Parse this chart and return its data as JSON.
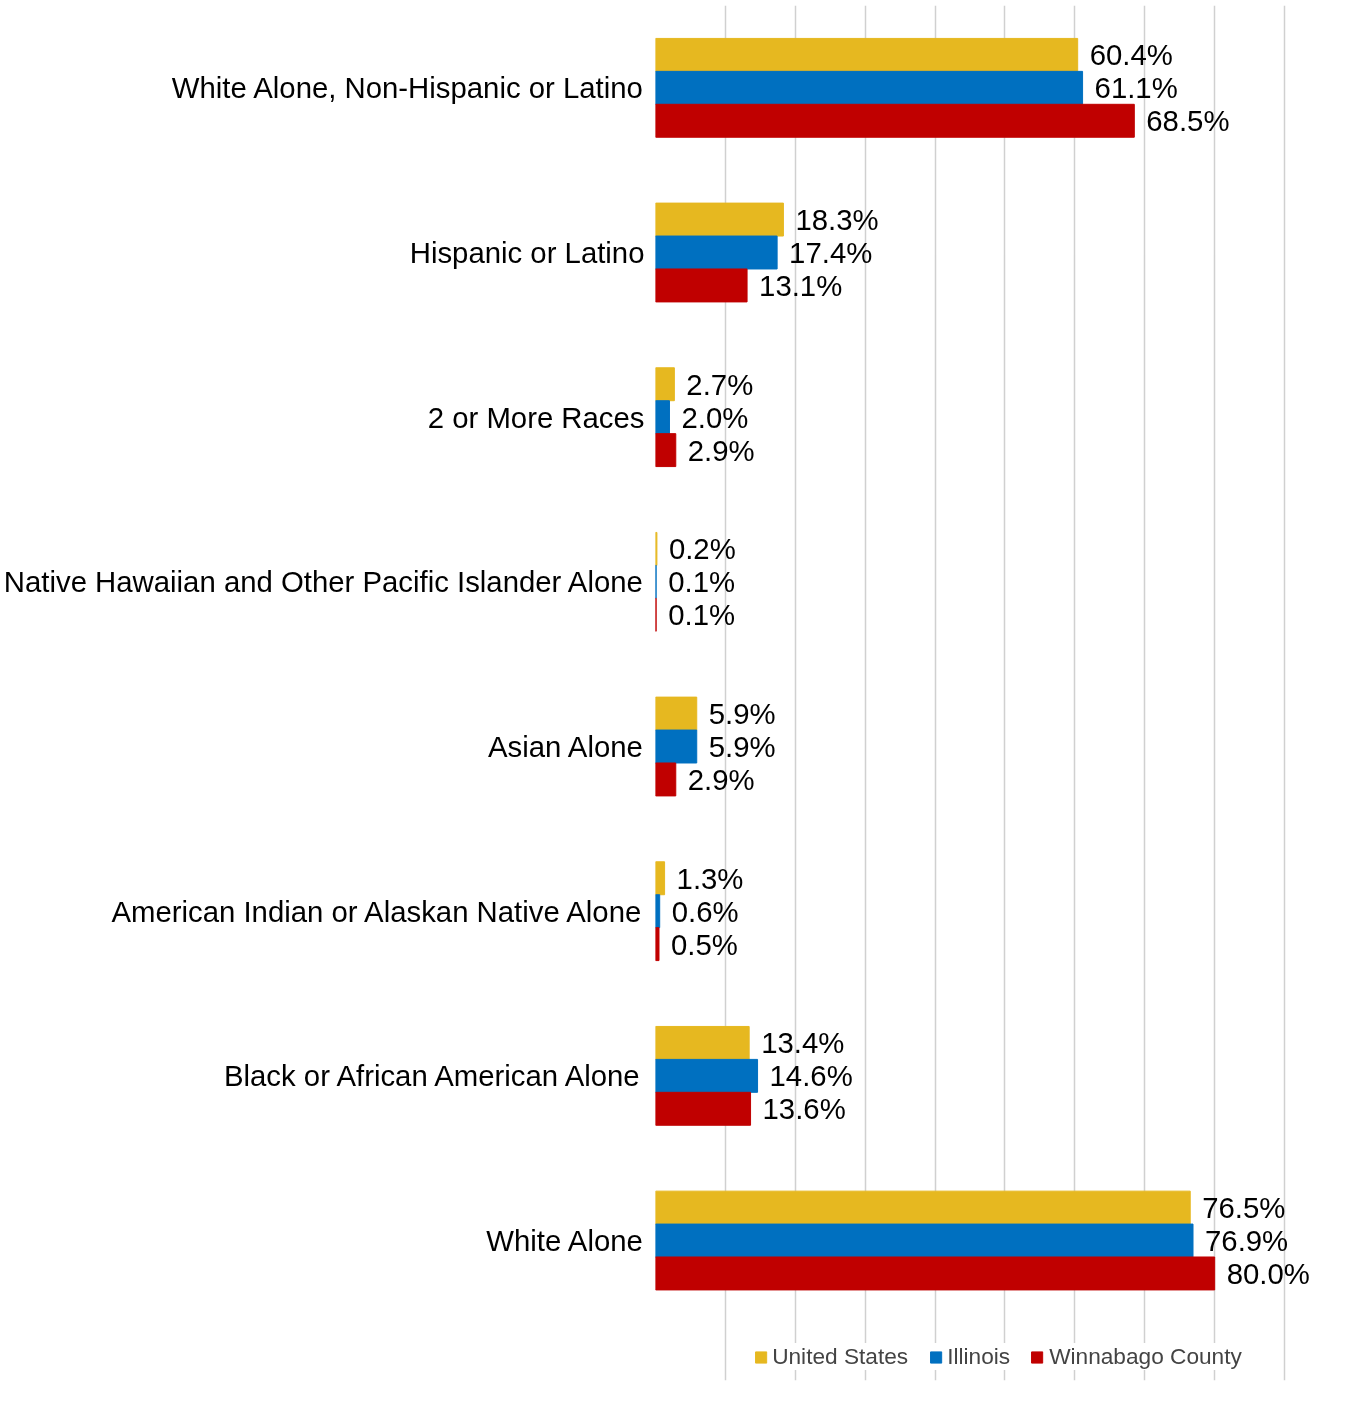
{
  "chart_data": {
    "type": "bar",
    "orientation": "horizontal",
    "categories": [
      "White Alone, Non-Hispanic or Latino",
      "Hispanic or Latino",
      "2 or More Races",
      "Native Hawaiian and Other Pacific Islander Alone",
      "Asian Alone",
      "American Indian or Alaskan Native Alone",
      "Black or African American Alone",
      "White Alone"
    ],
    "series": [
      {
        "name": "United States",
        "color": "#e6b820",
        "values": [
          60.4,
          18.3,
          2.7,
          0.2,
          5.9,
          1.3,
          13.4,
          76.5
        ],
        "value_labels": [
          "60.4%",
          "18.3%",
          "2.7%",
          "0.2%",
          "5.9%",
          "1.3%",
          "13.4%",
          "76.5%"
        ]
      },
      {
        "name": "Illinois",
        "color": "#0070c0",
        "values": [
          61.1,
          17.4,
          2.0,
          0.1,
          5.9,
          0.6,
          14.6,
          76.9
        ],
        "value_labels": [
          "61.1%",
          "17.4%",
          "2.0%",
          "0.1%",
          "5.9%",
          "0.6%",
          "14.6%",
          "76.9%"
        ]
      },
      {
        "name": "Winnabago County",
        "color": "#c00000",
        "values": [
          68.5,
          13.1,
          2.9,
          0.1,
          2.9,
          0.5,
          13.6,
          80.0
        ],
        "value_labels": [
          "68.5%",
          "13.1%",
          "2.9%",
          "0.1%",
          "2.9%",
          "0.5%",
          "13.6%",
          "80.0%"
        ]
      }
    ],
    "grid": "x",
    "legend": "bottom",
    "tick_labels": "y"
  }
}
